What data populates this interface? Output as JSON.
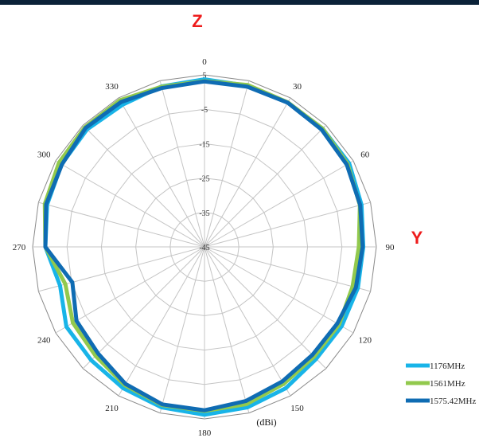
{
  "chart_data": {
    "type": "polar-line",
    "axis_labels": {
      "z": "Z",
      "y": "Y"
    },
    "angle_ticks": [
      "0",
      "30",
      "60",
      "90",
      "120",
      "150",
      "180",
      "210",
      "240",
      "270",
      "300",
      "330"
    ],
    "radial_ticks": [
      5,
      -5,
      -15,
      -25,
      -35,
      -45
    ],
    "radial_range": [
      -45,
      5
    ],
    "angles_deg": [
      0,
      15,
      30,
      45,
      60,
      75,
      90,
      105,
      120,
      135,
      150,
      165,
      180,
      195,
      210,
      225,
      240,
      255,
      270,
      285,
      300,
      315,
      330,
      345
    ],
    "unit": "(dBi)",
    "grid": true,
    "legend_position": "bottom-right",
    "series": [
      {
        "name": "1176MHz",
        "color": "#18b4e8",
        "values": [
          3.7,
          3.5,
          3.4,
          3.6,
          3.6,
          2.3,
          1.2,
          1.2,
          1.1,
          1.0,
          2.4,
          3.3,
          3.8,
          3.3,
          2.4,
          1.6,
          1.4,
          -1.5,
          1.3,
          2.4,
          3.0,
          3.3,
          2.7,
          3.3
        ]
      },
      {
        "name": "1561MHz",
        "color": "#92c94d",
        "values": [
          3.2,
          3.7,
          3.5,
          3.6,
          3.1,
          1.8,
          -0.1,
          -0.4,
          0.2,
          0.1,
          1.0,
          2.3,
          2.7,
          2.6,
          1.4,
          -0.2,
          -0.8,
          -3.1,
          1.3,
          3.1,
          3.9,
          4.2,
          4.2,
          3.2
        ]
      },
      {
        "name": "1575.42MHz",
        "color": "#0f6cb3",
        "values": [
          3.1,
          3.2,
          3.4,
          3.2,
          2.8,
          1.9,
          1.0,
          0.6,
          -0.4,
          -0.6,
          0.2,
          1.4,
          2.5,
          2.4,
          1.0,
          -1.2,
          -2.0,
          -5.2,
          1.3,
          2.7,
          2.9,
          3.9,
          3.6,
          2.8
        ]
      }
    ]
  }
}
